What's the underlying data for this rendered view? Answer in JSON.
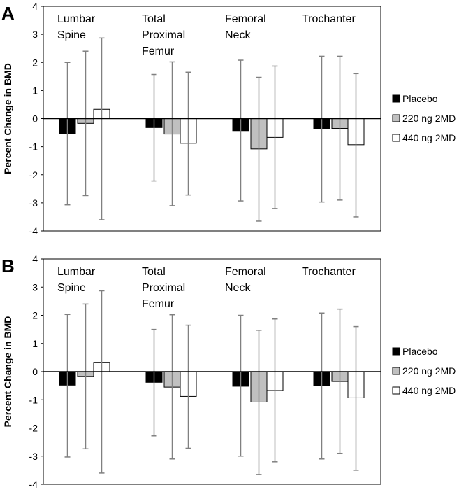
{
  "chart_data": [
    {
      "panel": "A",
      "type": "bar",
      "ylabel": "Percent Change in BMD",
      "ylim": [
        -4,
        4
      ],
      "yticks": [
        "4",
        "3",
        "2",
        "1",
        "0",
        "-1",
        "-2",
        "-3",
        "-4"
      ],
      "categories": [
        [
          "Lumbar",
          "Spine"
        ],
        [
          "Total",
          "Proximal",
          "Femur"
        ],
        [
          "Femoral",
          "Neck"
        ],
        [
          "Trochanter"
        ]
      ],
      "series": [
        {
          "name": "Placebo",
          "color": "#000000",
          "values": [
            -0.53,
            -0.32,
            -0.43,
            -0.37
          ],
          "err_low": [
            -3.07,
            -2.22,
            -2.93,
            -2.97
          ],
          "err_high": [
            2.0,
            1.57,
            2.08,
            2.22
          ]
        },
        {
          "name": "220 ng 2MD",
          "color": "#c0c0c0",
          "values": [
            -0.17,
            -0.55,
            -1.08,
            -0.35
          ],
          "err_low": [
            -2.74,
            -3.1,
            -3.65,
            -2.9
          ],
          "err_high": [
            2.4,
            2.02,
            1.47,
            2.22
          ]
        },
        {
          "name": "440 ng 2MD",
          "color": "#ffffff",
          "values": [
            0.33,
            -0.88,
            -0.67,
            -0.93
          ],
          "err_low": [
            -3.6,
            -2.72,
            -3.2,
            -3.5
          ],
          "err_high": [
            2.87,
            1.65,
            1.87,
            1.6
          ]
        }
      ],
      "grid": false,
      "legend_position": "right"
    },
    {
      "panel": "B",
      "type": "bar",
      "ylabel": "Percent Change in BMD",
      "ylim": [
        -4,
        4
      ],
      "yticks": [
        "4",
        "3",
        "2",
        "1",
        "0",
        "-1",
        "-2",
        "-3",
        "-4"
      ],
      "categories": [
        [
          "Lumbar",
          "Spine"
        ],
        [
          "Total",
          "Proximal",
          "Femur"
        ],
        [
          "Femoral",
          "Neck"
        ],
        [
          "Trochanter"
        ]
      ],
      "series": [
        {
          "name": "Placebo",
          "color": "#000000",
          "values": [
            -0.48,
            -0.38,
            -0.52,
            -0.5
          ],
          "err_low": [
            -3.03,
            -2.28,
            -3.0,
            -3.1
          ],
          "err_high": [
            2.03,
            1.5,
            2.0,
            2.08
          ]
        },
        {
          "name": "220 ng 2MD",
          "color": "#c0c0c0",
          "values": [
            -0.17,
            -0.55,
            -1.08,
            -0.35
          ],
          "err_low": [
            -2.74,
            -3.1,
            -3.65,
            -2.9
          ],
          "err_high": [
            2.4,
            2.02,
            1.47,
            2.22
          ]
        },
        {
          "name": "440 ng 2MD",
          "color": "#ffffff",
          "values": [
            0.33,
            -0.88,
            -0.67,
            -0.93
          ],
          "err_low": [
            -3.6,
            -2.72,
            -3.2,
            -3.5
          ],
          "err_high": [
            2.87,
            1.65,
            1.87,
            1.6
          ]
        }
      ],
      "grid": false,
      "legend_position": "right"
    }
  ]
}
